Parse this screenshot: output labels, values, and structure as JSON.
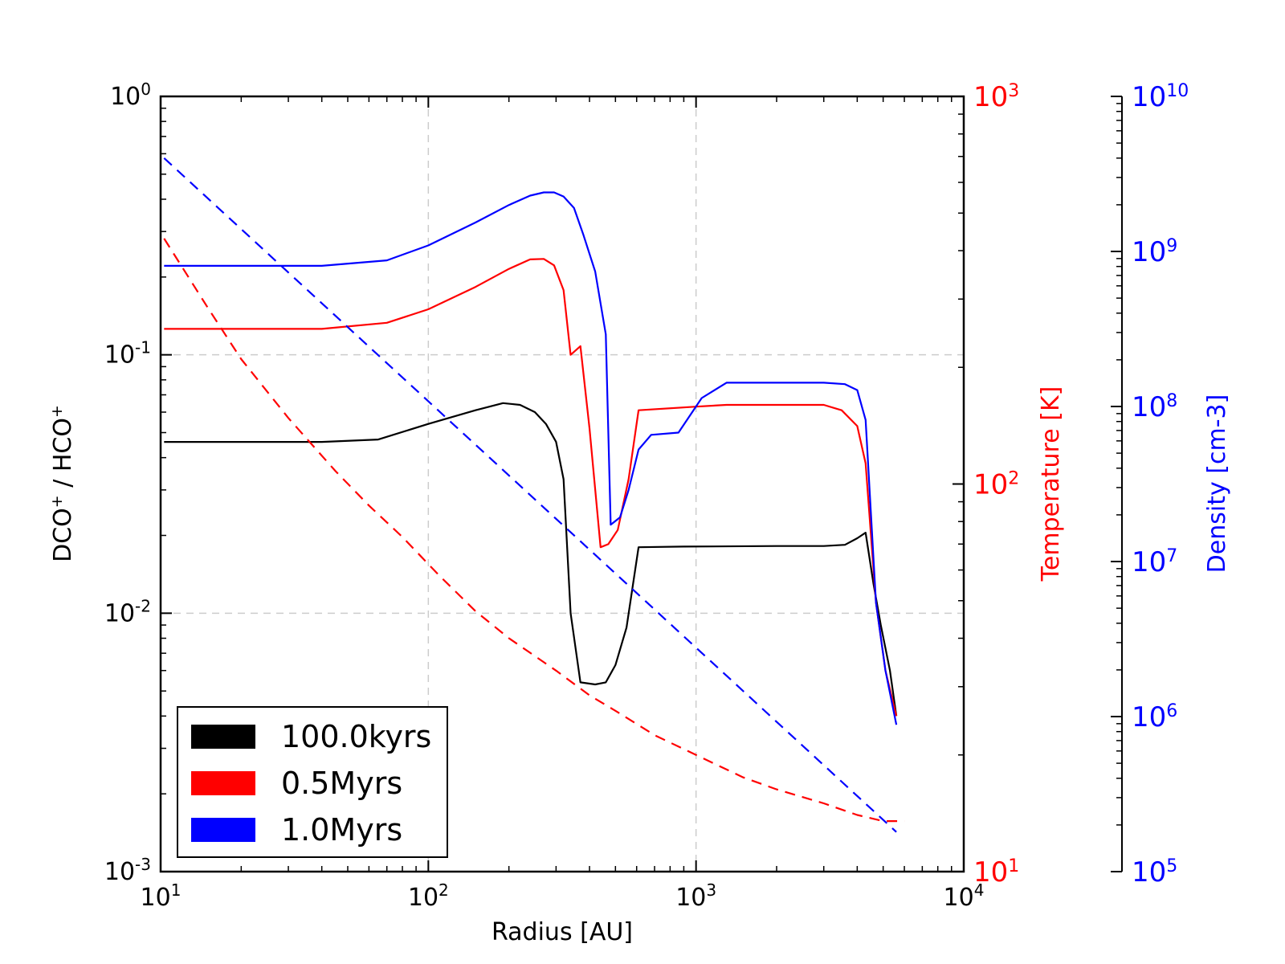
{
  "chart_data": {
    "type": "line",
    "xlabel": "Radius [AU]",
    "ylabel_prefix": "DCO",
    "ylabel_mid": " / HCO",
    "ylabel_sup": "+",
    "y2label": "Temperature [K]",
    "y3label": "Density [cm-3]",
    "xlim": [
      10,
      10000
    ],
    "ylim": [
      0.001,
      1
    ],
    "y2lim": [
      10,
      1000
    ],
    "y3lim": [
      100000,
      10000000000
    ],
    "xscale": "log",
    "yscale": "log",
    "x_ticks": [
      {
        "base": "10",
        "exp": "1"
      },
      {
        "base": "10",
        "exp": "2"
      },
      {
        "base": "10",
        "exp": "3"
      },
      {
        "base": "10",
        "exp": "4"
      }
    ],
    "y_ticks": [
      {
        "base": "10",
        "exp": "-3"
      },
      {
        "base": "10",
        "exp": "-2"
      },
      {
        "base": "10",
        "exp": "-1"
      },
      {
        "base": "10",
        "exp": "0"
      }
    ],
    "y2_ticks": [
      {
        "base": "10",
        "exp": "1"
      },
      {
        "base": "10",
        "exp": "2"
      },
      {
        "base": "10",
        "exp": "3"
      }
    ],
    "y3_ticks": [
      {
        "base": "10",
        "exp": "5"
      },
      {
        "base": "10",
        "exp": "6"
      },
      {
        "base": "10",
        "exp": "7"
      },
      {
        "base": "10",
        "exp": "8"
      },
      {
        "base": "10",
        "exp": "9"
      },
      {
        "base": "10",
        "exp": "10"
      }
    ],
    "grid": true,
    "legend_position": "lower-left",
    "colors": {
      "black": "#000000",
      "red": "#ff0000",
      "blue": "#0000ff",
      "grid": "#cccccc"
    },
    "series": [
      {
        "name": "100.0kyrs",
        "color": "#000000",
        "axis": "ratio",
        "style": "solid",
        "points": [
          [
            10.3,
            0.046
          ],
          [
            40,
            0.046
          ],
          [
            65,
            0.047
          ],
          [
            100,
            0.054
          ],
          [
            150,
            0.061
          ],
          [
            190,
            0.065
          ],
          [
            220,
            0.064
          ],
          [
            250,
            0.06
          ],
          [
            275,
            0.054
          ],
          [
            300,
            0.046
          ],
          [
            320,
            0.033
          ],
          [
            340,
            0.01
          ],
          [
            370,
            0.0054
          ],
          [
            420,
            0.0053
          ],
          [
            460,
            0.0054
          ],
          [
            500,
            0.0063
          ],
          [
            550,
            0.0088
          ],
          [
            610,
            0.018
          ],
          [
            900,
            0.0181
          ],
          [
            2000,
            0.0182
          ],
          [
            3000,
            0.0182
          ],
          [
            3600,
            0.0184
          ],
          [
            4000,
            0.0195
          ],
          [
            4300,
            0.0205
          ],
          [
            4600,
            0.013
          ],
          [
            4900,
            0.009
          ],
          [
            5300,
            0.006
          ],
          [
            5600,
            0.004
          ]
        ]
      },
      {
        "name": "0.5Myrs",
        "color": "#ff0000",
        "axis": "ratio",
        "style": "solid",
        "points": [
          [
            10.3,
            0.126
          ],
          [
            40,
            0.126
          ],
          [
            70,
            0.133
          ],
          [
            100,
            0.15
          ],
          [
            150,
            0.183
          ],
          [
            200,
            0.215
          ],
          [
            240,
            0.234
          ],
          [
            270,
            0.235
          ],
          [
            295,
            0.222
          ],
          [
            320,
            0.178
          ],
          [
            340,
            0.1
          ],
          [
            370,
            0.108
          ],
          [
            400,
            0.052
          ],
          [
            440,
            0.018
          ],
          [
            470,
            0.0185
          ],
          [
            510,
            0.021
          ],
          [
            560,
            0.033
          ],
          [
            610,
            0.061
          ],
          [
            1000,
            0.063
          ],
          [
            1300,
            0.064
          ],
          [
            2000,
            0.064
          ],
          [
            3000,
            0.064
          ],
          [
            3500,
            0.061
          ],
          [
            4000,
            0.053
          ],
          [
            4300,
            0.038
          ],
          [
            4700,
            0.011
          ],
          [
            5100,
            0.006
          ],
          [
            5600,
            0.004
          ]
        ]
      },
      {
        "name": "1.0Myrs",
        "color": "#0000ff",
        "axis": "ratio",
        "style": "solid",
        "points": [
          [
            10.3,
            0.221
          ],
          [
            40,
            0.221
          ],
          [
            70,
            0.232
          ],
          [
            100,
            0.265
          ],
          [
            150,
            0.325
          ],
          [
            200,
            0.38
          ],
          [
            240,
            0.413
          ],
          [
            270,
            0.425
          ],
          [
            295,
            0.425
          ],
          [
            320,
            0.41
          ],
          [
            350,
            0.37
          ],
          [
            380,
            0.29
          ],
          [
            420,
            0.21
          ],
          [
            460,
            0.12
          ],
          [
            480,
            0.022
          ],
          [
            520,
            0.0235
          ],
          [
            560,
            0.03
          ],
          [
            610,
            0.043
          ],
          [
            680,
            0.049
          ],
          [
            860,
            0.05
          ],
          [
            1050,
            0.068
          ],
          [
            1300,
            0.078
          ],
          [
            2000,
            0.078
          ],
          [
            3000,
            0.078
          ],
          [
            3600,
            0.077
          ],
          [
            4000,
            0.073
          ],
          [
            4300,
            0.056
          ],
          [
            4700,
            0.011
          ],
          [
            5100,
            0.006
          ],
          [
            5600,
            0.0037
          ]
        ]
      },
      {
        "name": "Temperature",
        "color": "#ff0000",
        "axis": "temperature",
        "style": "dashed",
        "points": [
          [
            10.3,
            430
          ],
          [
            15,
            285
          ],
          [
            20,
            210
          ],
          [
            30,
            148
          ],
          [
            45,
            108
          ],
          [
            60,
            88
          ],
          [
            80,
            73
          ],
          [
            110,
            58
          ],
          [
            150,
            47
          ],
          [
            200,
            40
          ],
          [
            300,
            33
          ],
          [
            400,
            28.5
          ],
          [
            500,
            26
          ],
          [
            700,
            22.5
          ],
          [
            1000,
            20
          ],
          [
            1500,
            17.5
          ],
          [
            2000,
            16.3
          ],
          [
            3000,
            15
          ],
          [
            4000,
            14
          ],
          [
            5000,
            13.5
          ],
          [
            6000,
            13.5
          ]
        ]
      },
      {
        "name": "Density",
        "color": "#0000ff",
        "axis": "density",
        "style": "dashed",
        "points": [
          [
            10.3,
            4000000000
          ],
          [
            5600,
            180000
          ]
        ]
      }
    ]
  }
}
